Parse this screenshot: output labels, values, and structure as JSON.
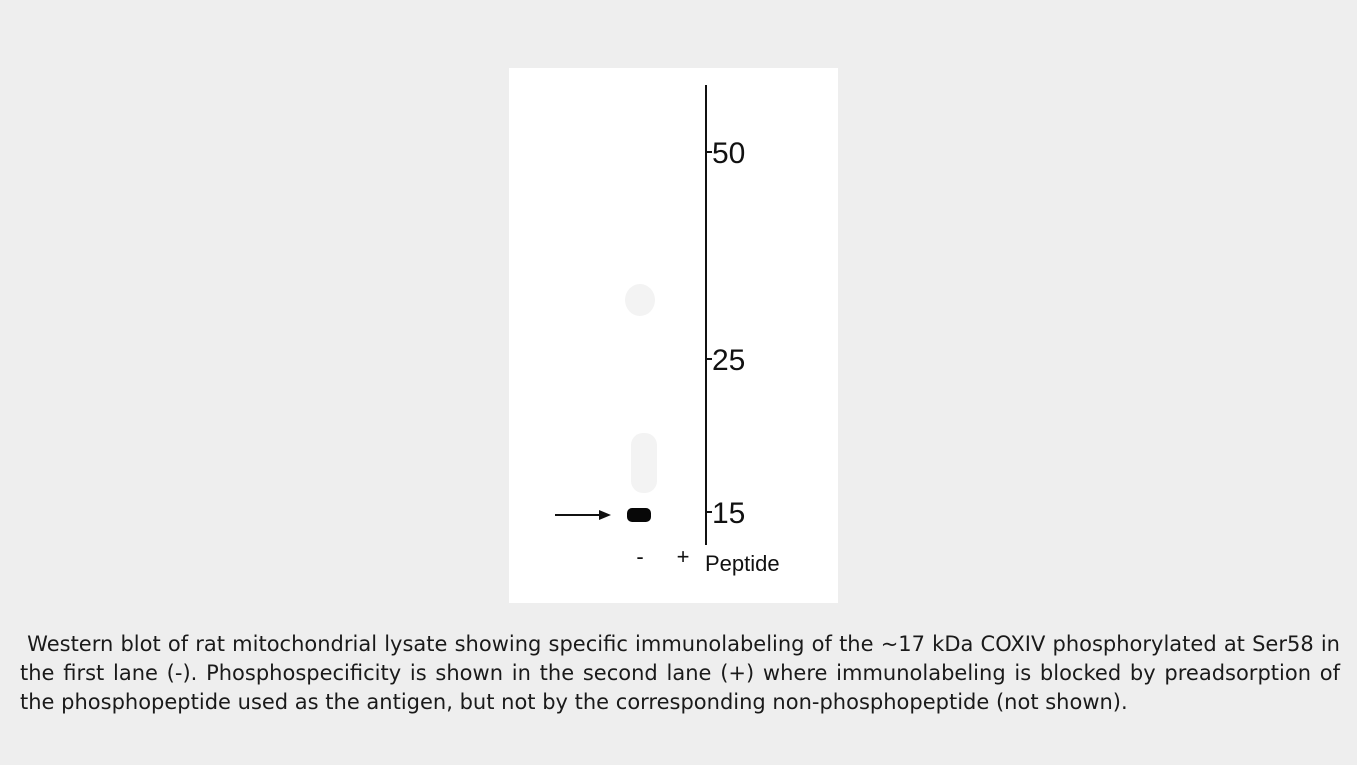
{
  "figure": {
    "markers": [
      "50",
      "25",
      "15"
    ],
    "lanes": [
      "-",
      "+"
    ],
    "lane_title": "Peptide"
  },
  "caption": " Western blot of rat mitochondrial lysate showing specific immunolabeling of the ~17 kDa COXIV phosphorylated at Ser58 in the first lane (-). Phosphospecificity is shown in the second lane (+) where immunolabeling is blocked by preadsorption of the phosphopeptide used as the antigen, but not by the corresponding non-phosphopeptide (not shown)."
}
